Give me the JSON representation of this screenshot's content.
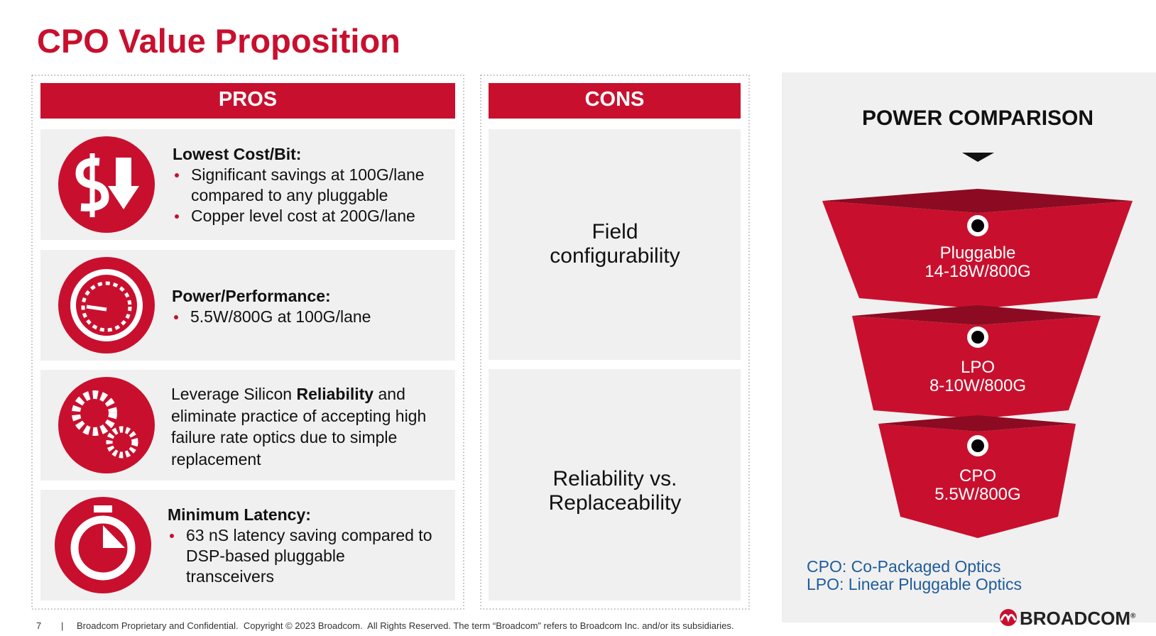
{
  "header": {
    "title": "CPO Value Proposition"
  },
  "pros": {
    "heading": "PROS",
    "items": [
      {
        "heading": "Lowest Cost/Bit:",
        "bullets": [
          "Significant savings at 100G/lane compared to any pluggable",
          "Copper level cost at 200G/lane"
        ]
      },
      {
        "heading": "Power/Performance:",
        "bullets": [
          "5.5W/800G at 100G/lane"
        ]
      },
      {
        "parts": [
          "Leverage Silicon ",
          "Reliability",
          " and eliminate practice of accepting high failure rate optics due to simple replacement"
        ]
      },
      {
        "heading": "Minimum Latency:",
        "bullets": [
          "63 nS latency saving compared to DSP-based pluggable transceivers"
        ]
      }
    ]
  },
  "cons": {
    "heading": "CONS",
    "items": [
      [
        "Field",
        "configurability"
      ],
      [
        "Reliability vs.",
        "Replaceability"
      ]
    ]
  },
  "power": {
    "title": "POWER COMPARISON",
    "tiers": [
      {
        "name": "Pluggable",
        "value": "14-18W/800G"
      },
      {
        "name": "LPO",
        "value": "8-10W/800G"
      },
      {
        "name": "CPO",
        "value": "5.5W/800G"
      }
    ],
    "legend": [
      "CPO: Co-Packaged Optics",
      "LPO: Linear Pluggable Optics"
    ]
  },
  "footer": {
    "page": "7",
    "separator": "|",
    "text": "Broadcom Proprietary and Confidential.  Copyright © 2023 Broadcom.  All Rights Reserved. The term “Broadcom” refers to Broadcom Inc. and/or its subsidiaries.",
    "logo": "BROADCOM",
    "logo_mark": "®"
  }
}
